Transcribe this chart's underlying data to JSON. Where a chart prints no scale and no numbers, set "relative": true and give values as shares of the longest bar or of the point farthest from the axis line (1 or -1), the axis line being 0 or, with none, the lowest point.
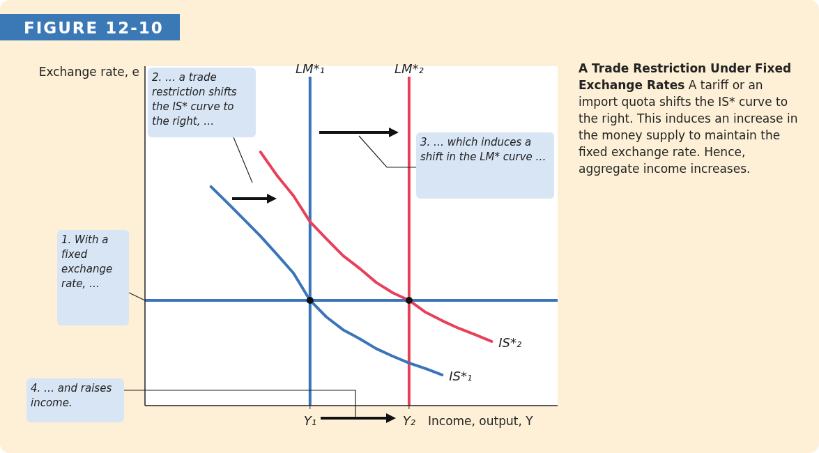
{
  "chart_data": {
    "type": "line",
    "title": "FIGURE 12-10",
    "subtitle": "A Trade Restriction Under Fixed Exchange Rates",
    "xlabel": "Income, output, Y",
    "relative": true,
    "marker": "none",
    "categories": [
      null,
      null,
      null,
      null,
      null,
      null,
      null,
      null,
      null,
      null,
      "Y₁",
      null,
      null,
      null,
      null,
      null,
      "Y₂",
      null,
      null,
      null,
      null,
      null,
      null,
      null,
      null,
      null
    ],
    "series": [
      {
        "name": "IS*₁",
        "color": "#3a74b9",
        "values": [
          null,
          null,
          null,
          null,
          0.863,
          0.799,
          0.734,
          0.668,
          0.596,
          0.522,
          0.415,
          0.349,
          0.299,
          0.264,
          0.225,
          0.195,
          0.168,
          0.146,
          0.121,
          null,
          null,
          null,
          null,
          null,
          null,
          null
        ]
      },
      {
        "name": "IS*₂",
        "color": "#e8405a",
        "values": [
          null,
          null,
          null,
          null,
          null,
          null,
          null,
          1,
          0.907,
          0.827,
          0.725,
          0.657,
          0.591,
          0.541,
          0.486,
          0.445,
          0.415,
          0.368,
          0.335,
          0.305,
          0.28,
          0.253,
          null,
          null,
          null,
          null
        ]
      },
      {
        "type": "scatter",
        "marker": "circle",
        "color": "#111111",
        "values": [
          null,
          null,
          null,
          null,
          null,
          null,
          null,
          null,
          null,
          null,
          0.415,
          null,
          null,
          null,
          null,
          null,
          0.415,
          null,
          null,
          null,
          null,
          null,
          null,
          null,
          null,
          null
        ]
      }
    ],
    "ref_lines": [
      {
        "axis": "x",
        "value": "Y₁",
        "label": "LM*₁",
        "color": "#3a74b9"
      },
      {
        "axis": "x",
        "value": "Y₂",
        "label": "LM*₂",
        "color": "#e8405a"
      },
      {
        "axis": "y",
        "value": 0.415,
        "label": null,
        "color": "#3a74b9"
      }
    ],
    "annotations": [
      "A tariff or an import quota shifts the IS* curve to the right. This induces an increase in the money supply to maintain the fixed exchange rate. Hence, aggregate income increases.",
      "1. With a fixed exchange rate, …",
      "2. … a trade restriction shifts the IS* curve to the right, …",
      "3. … which induces a shift in the LM* curve …",
      "4. … and raises income.",
      "Exchange rate, e"
    ]
  }
}
